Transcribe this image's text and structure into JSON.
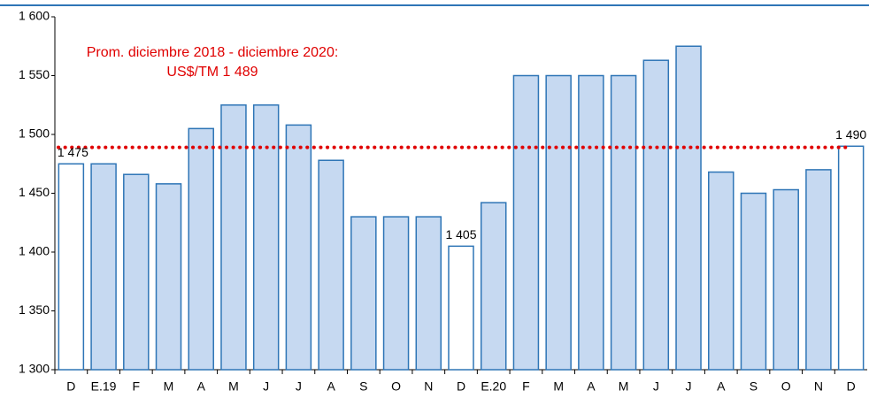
{
  "chart_data": {
    "type": "bar",
    "categories": [
      "D",
      "E.19",
      "F",
      "M",
      "A",
      "M",
      "J",
      "J",
      "A",
      "S",
      "O",
      "N",
      "D",
      "E.20",
      "F",
      "M",
      "A",
      "M",
      "J",
      "J",
      "A",
      "S",
      "O",
      "N",
      "D"
    ],
    "values": [
      1475,
      1475,
      1466,
      1458,
      1505,
      1525,
      1525,
      1508,
      1478,
      1430,
      1430,
      1430,
      1405,
      1442,
      1550,
      1550,
      1550,
      1550,
      1563,
      1575,
      1468,
      1450,
      1453,
      1470,
      1490
    ],
    "value_labels": [
      "1 475",
      null,
      null,
      null,
      null,
      null,
      null,
      null,
      null,
      null,
      null,
      null,
      "1 405",
      null,
      null,
      null,
      null,
      null,
      null,
      null,
      null,
      null,
      null,
      null,
      "1 490"
    ],
    "colors": [
      "#ffffff",
      "#c6d9f1",
      "#c6d9f1",
      "#c6d9f1",
      "#c6d9f1",
      "#c6d9f1",
      "#c6d9f1",
      "#c6d9f1",
      "#c6d9f1",
      "#c6d9f1",
      "#c6d9f1",
      "#c6d9f1",
      "#ffffff",
      "#c6d9f1",
      "#c6d9f1",
      "#c6d9f1",
      "#c6d9f1",
      "#c6d9f1",
      "#c6d9f1",
      "#c6d9f1",
      "#c6d9f1",
      "#c6d9f1",
      "#c6d9f1",
      "#c6d9f1",
      "#ffffff"
    ],
    "edge_color": "#2e75b6",
    "ylim": [
      1300,
      1600
    ],
    "yticks": [
      {
        "value": 1300,
        "label": "1 300"
      },
      {
        "value": 1350,
        "label": "1 350"
      },
      {
        "value": 1400,
        "label": "1 400"
      },
      {
        "value": 1450,
        "label": "1 450"
      },
      {
        "value": 1500,
        "label": "1 500"
      },
      {
        "value": 1550,
        "label": "1 550"
      },
      {
        "value": 1600,
        "label": "1 600"
      }
    ],
    "reference_line": {
      "value": 1489,
      "color": "#e00000",
      "label": [
        "Prom. diciembre 2018 - diciembre 2020:",
        "US$/TM 1 489"
      ]
    }
  }
}
